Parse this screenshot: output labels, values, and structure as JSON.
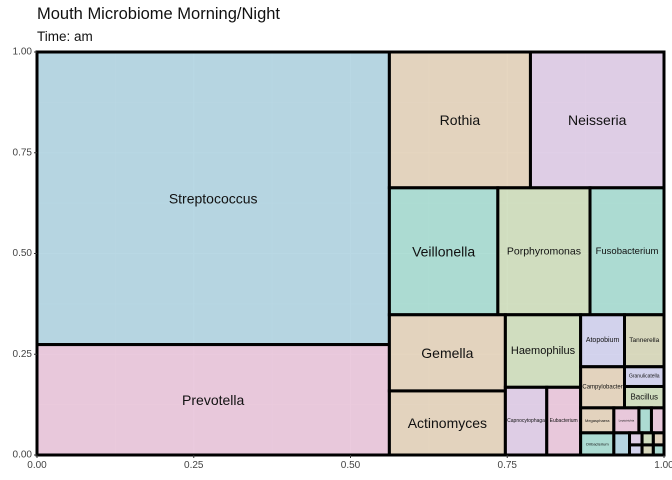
{
  "title": "Mouth Microbiome Morning/Night",
  "subtitle": "Time: am",
  "chart_data": {
    "type": "treemap",
    "xlim": [
      0,
      1
    ],
    "ylim": [
      0,
      1
    ],
    "x_ticks": [
      "0.00",
      "0.25",
      "0.50",
      "0.75",
      "1.00"
    ],
    "y_ticks": [
      "0.00",
      "0.25",
      "0.50",
      "0.75",
      "1.00"
    ],
    "grid": true,
    "colors": {
      "panel": "#ebebeb",
      "grid": "#ffffff",
      "border": "#000000",
      "fills": [
        "#a9d0de",
        "#e6bfd7",
        "#e0cdb3",
        "#dbc6e3",
        "#9ed7cc",
        "#c9d9b5",
        "#ccccec",
        "#d2d2b1"
      ]
    },
    "tiles": [
      {
        "label": "Streptococcus",
        "x0": 0.0,
        "x1": 0.562,
        "y0": 0.274,
        "y1": 1.0,
        "fill": 0,
        "size": 14
      },
      {
        "label": "Prevotella",
        "x0": 0.0,
        "x1": 0.562,
        "y0": 0.0,
        "y1": 0.274,
        "fill": 1,
        "size": 14
      },
      {
        "label": "Rothia",
        "x0": 0.562,
        "x1": 0.787,
        "y0": 0.663,
        "y1": 1.0,
        "fill": 2,
        "size": 14
      },
      {
        "label": "Neisseria",
        "x0": 0.787,
        "x1": 1.0,
        "y0": 0.663,
        "y1": 1.0,
        "fill": 3,
        "size": 14
      },
      {
        "label": "Veillonella",
        "x0": 0.562,
        "x1": 0.735,
        "y0": 0.348,
        "y1": 0.663,
        "fill": 4,
        "size": 14
      },
      {
        "label": "Porphyromonas",
        "x0": 0.735,
        "x1": 0.882,
        "y0": 0.348,
        "y1": 0.663,
        "fill": 5,
        "size": 10.5
      },
      {
        "label": "Fusobacterium",
        "x0": 0.882,
        "x1": 1.0,
        "y0": 0.348,
        "y1": 0.663,
        "fill": 4,
        "size": 9.5
      },
      {
        "label": "Gemella",
        "x0": 0.562,
        "x1": 0.747,
        "y0": 0.159,
        "y1": 0.348,
        "fill": 2,
        "size": 14
      },
      {
        "label": "Actinomyces",
        "x0": 0.562,
        "x1": 0.747,
        "y0": 0.0,
        "y1": 0.159,
        "fill": 2,
        "size": 14
      },
      {
        "label": "Haemophilus",
        "x0": 0.747,
        "x1": 0.867,
        "y0": 0.168,
        "y1": 0.348,
        "fill": 5,
        "size": 11
      },
      {
        "label": "Capnocytophaga",
        "x0": 0.747,
        "x1": 0.813,
        "y0": 0.0,
        "y1": 0.168,
        "fill": 3,
        "size": 5
      },
      {
        "label": "Eubacterium",
        "x0": 0.813,
        "x1": 0.867,
        "y0": 0.0,
        "y1": 0.168,
        "fill": 1,
        "size": 5
      },
      {
        "label": "Atopobium",
        "x0": 0.867,
        "x1": 0.937,
        "y0": 0.219,
        "y1": 0.348,
        "fill": 6,
        "size": 7
      },
      {
        "label": "Tannerella",
        "x0": 0.937,
        "x1": 1.0,
        "y0": 0.219,
        "y1": 0.348,
        "fill": 7,
        "size": 6.5
      },
      {
        "label": "Campylobacter",
        "x0": 0.867,
        "x1": 0.937,
        "y0": 0.117,
        "y1": 0.219,
        "fill": 2,
        "size": 6
      },
      {
        "label": "Granulicatella",
        "x0": 0.937,
        "x1": 1.0,
        "y0": 0.17,
        "y1": 0.219,
        "fill": 6,
        "size": 5
      },
      {
        "label": "Bacillus",
        "x0": 0.937,
        "x1": 1.0,
        "y0": 0.117,
        "y1": 0.17,
        "fill": 5,
        "size": 8
      },
      {
        "label": "Megasphaera",
        "x0": 0.867,
        "x1": 0.92,
        "y0": 0.055,
        "y1": 0.117,
        "fill": 2,
        "size": 4
      },
      {
        "label": "Oribacterium",
        "x0": 0.867,
        "x1": 0.92,
        "y0": 0.0,
        "y1": 0.055,
        "fill": 4,
        "size": 4
      },
      {
        "label": "Leptotrichia",
        "x0": 0.92,
        "x1": 0.96,
        "y0": 0.055,
        "y1": 0.117,
        "fill": 1,
        "size": 3
      },
      {
        "label": "",
        "x0": 0.96,
        "x1": 0.98,
        "y0": 0.055,
        "y1": 0.117,
        "fill": 4,
        "size": 3
      },
      {
        "label": "",
        "x0": 0.98,
        "x1": 1.0,
        "y0": 0.055,
        "y1": 0.117,
        "fill": 1,
        "size": 3
      },
      {
        "label": "",
        "x0": 0.92,
        "x1": 0.945,
        "y0": 0.0,
        "y1": 0.055,
        "fill": 0,
        "size": 3
      },
      {
        "label": "",
        "x0": 0.945,
        "x1": 0.965,
        "y0": 0.025,
        "y1": 0.055,
        "fill": 3,
        "size": 3
      },
      {
        "label": "",
        "x0": 0.965,
        "x1": 0.983,
        "y0": 0.025,
        "y1": 0.055,
        "fill": 5,
        "size": 3
      },
      {
        "label": "",
        "x0": 0.983,
        "x1": 1.0,
        "y0": 0.025,
        "y1": 0.055,
        "fill": 2,
        "size": 3
      },
      {
        "label": "",
        "x0": 0.945,
        "x1": 0.965,
        "y0": 0.0,
        "y1": 0.025,
        "fill": 6,
        "size": 3
      },
      {
        "label": "",
        "x0": 0.965,
        "x1": 0.983,
        "y0": 0.0,
        "y1": 0.025,
        "fill": 7,
        "size": 3
      },
      {
        "label": "",
        "x0": 0.983,
        "x1": 1.0,
        "y0": 0.0,
        "y1": 0.025,
        "fill": 4,
        "size": 3
      }
    ]
  }
}
